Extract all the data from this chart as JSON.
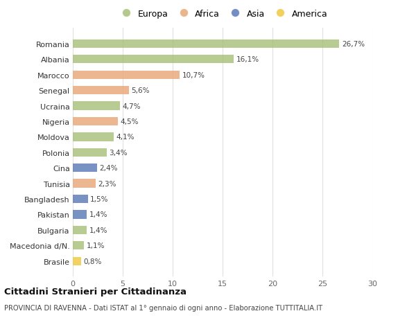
{
  "categories": [
    "Romania",
    "Albania",
    "Marocco",
    "Senegal",
    "Ucraina",
    "Nigeria",
    "Moldova",
    "Polonia",
    "Cina",
    "Tunisia",
    "Bangladesh",
    "Pakistan",
    "Bulgaria",
    "Macedonia d/N.",
    "Brasile"
  ],
  "values": [
    26.7,
    16.1,
    10.7,
    5.6,
    4.7,
    4.5,
    4.1,
    3.4,
    2.4,
    2.3,
    1.5,
    1.4,
    1.4,
    1.1,
    0.8
  ],
  "labels": [
    "26,7%",
    "16,1%",
    "10,7%",
    "5,6%",
    "4,7%",
    "4,5%",
    "4,1%",
    "3,4%",
    "2,4%",
    "2,3%",
    "1,5%",
    "1,4%",
    "1,4%",
    "1,1%",
    "0,8%"
  ],
  "continents": [
    "Europa",
    "Europa",
    "Africa",
    "Africa",
    "Europa",
    "Africa",
    "Europa",
    "Europa",
    "Asia",
    "Africa",
    "Asia",
    "Asia",
    "Europa",
    "Europa",
    "America"
  ],
  "colors": {
    "Europa": "#a8c07a",
    "Africa": "#e8a878",
    "Asia": "#5a7ab8",
    "America": "#f0c840"
  },
  "legend_order": [
    "Europa",
    "Africa",
    "Asia",
    "America"
  ],
  "title": "Cittadini Stranieri per Cittadinanza",
  "subtitle": "PROVINCIA DI RAVENNA - Dati ISTAT al 1° gennaio di ogni anno - Elaborazione TUTTITALIA.IT",
  "xlim": [
    0,
    30
  ],
  "xticks": [
    0,
    5,
    10,
    15,
    20,
    25,
    30
  ],
  "background_color": "#ffffff",
  "grid_color": "#e0e0e0"
}
